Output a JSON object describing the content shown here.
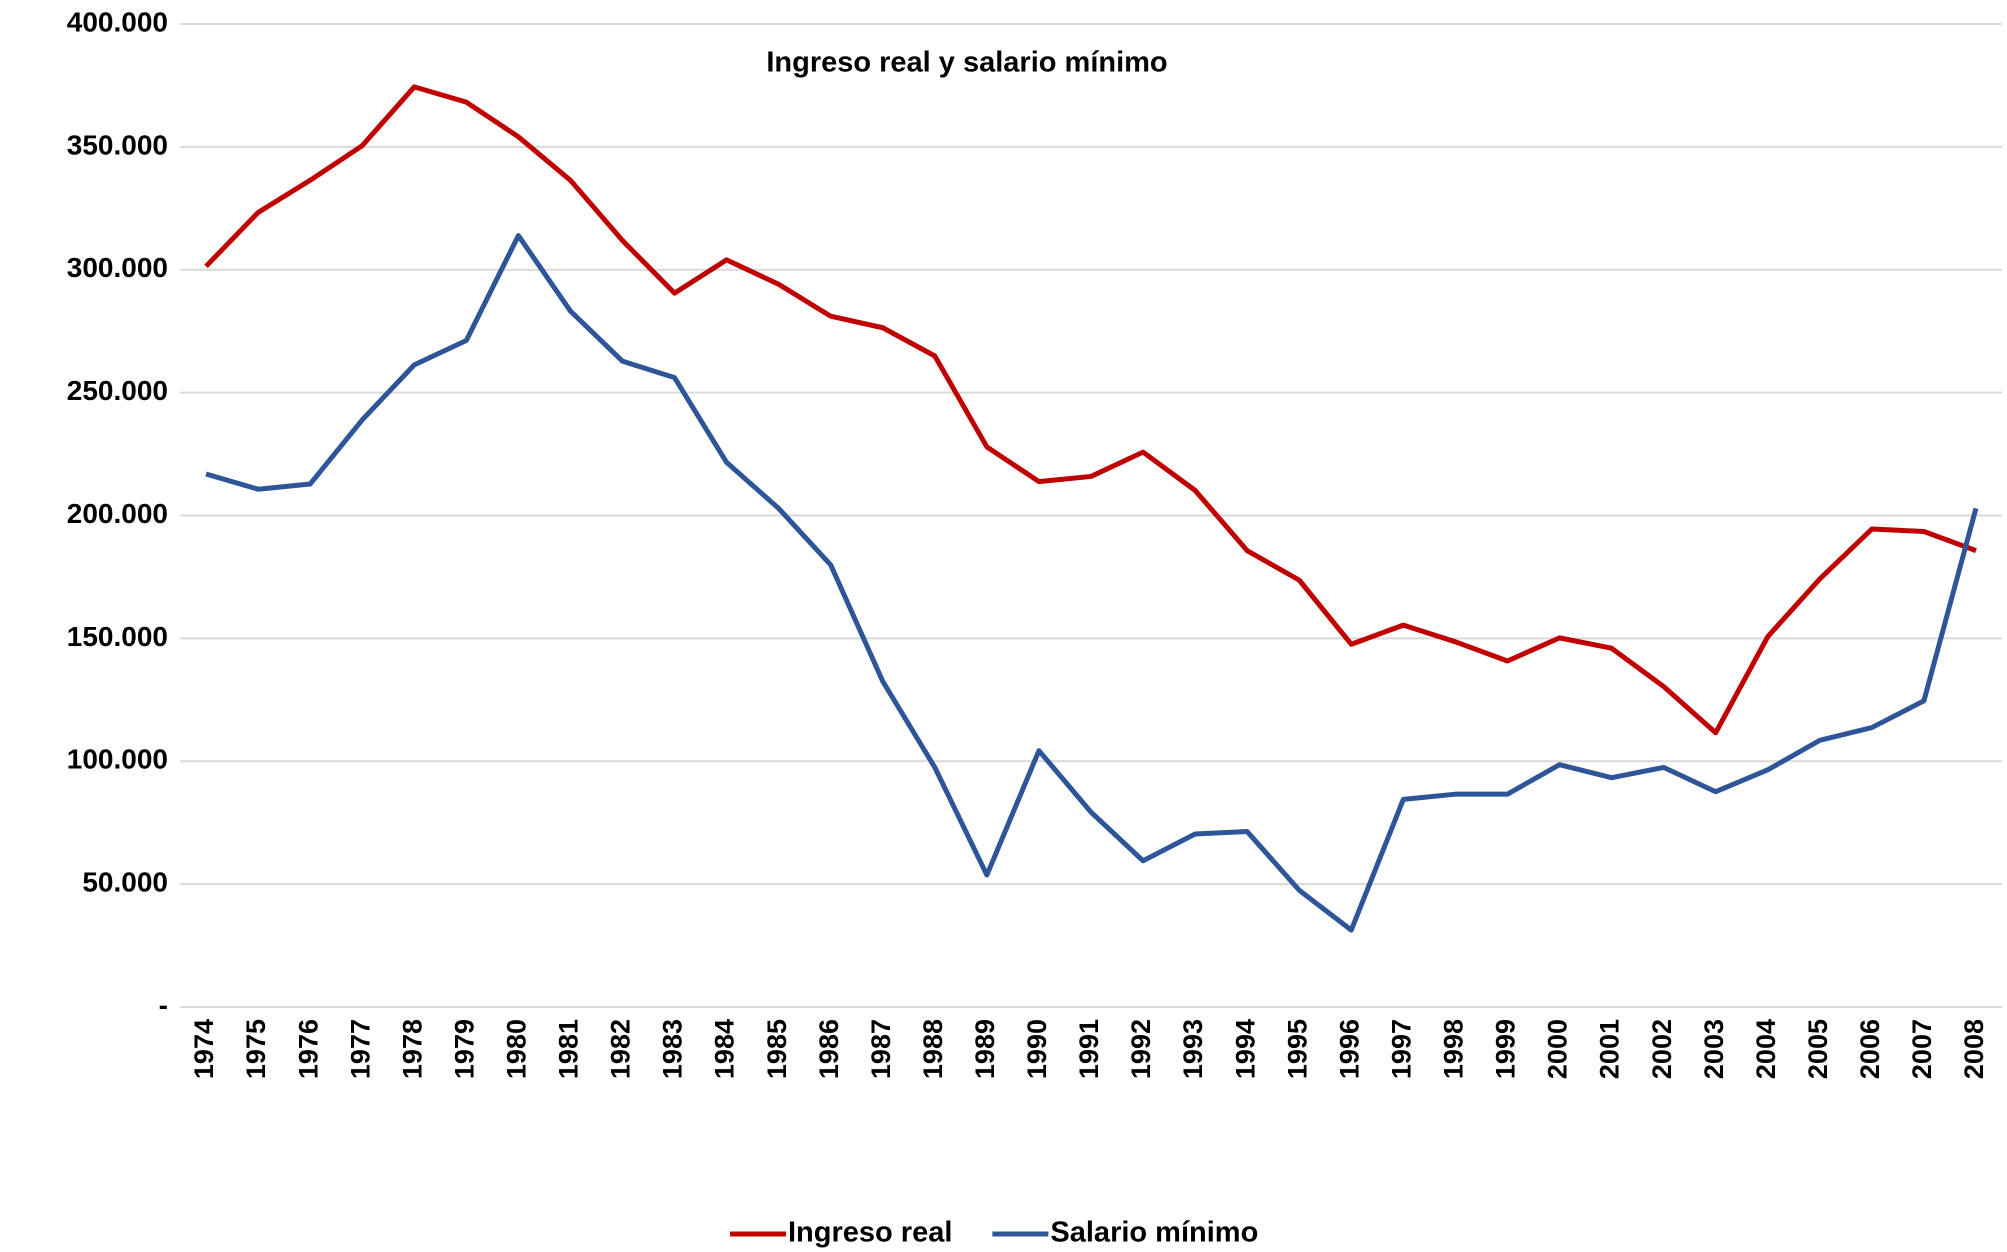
{
  "chart_data": {
    "type": "line",
    "title": "Ingreso real y salario mínimo",
    "categories": [
      "1974",
      "1975",
      "1976",
      "1977",
      "1978",
      "1979",
      "1980",
      "1981",
      "1982",
      "1983",
      "1984",
      "1985",
      "1986",
      "1987",
      "1988",
      "1989",
      "1990",
      "1991",
      "1992",
      "1993",
      "1994",
      "1995",
      "1996",
      "1997",
      "1998",
      "1999",
      "2000",
      "2001",
      "2002",
      "2003",
      "2004",
      "2005",
      "2006",
      "2007",
      "2008"
    ],
    "series": [
      {
        "name": "Ingreso real",
        "color": "#c00000",
        "values": [
          301400,
          323300,
          336400,
          350500,
          374400,
          368200,
          354100,
          336400,
          311900,
          290500,
          304000,
          294100,
          281100,
          276400,
          264900,
          227900,
          213800,
          215900,
          225800,
          210200,
          185700,
          173700,
          147600,
          155400,
          148600,
          140800,
          150200,
          146000,
          130400,
          111600,
          150700,
          174200,
          194500,
          193500,
          185700
        ]
      },
      {
        "name": "Salario mínimo",
        "color": "#2e5597",
        "values": [
          216900,
          210700,
          212800,
          238900,
          261300,
          271200,
          313900,
          283200,
          262800,
          256100,
          221600,
          202900,
          179900,
          132500,
          97500,
          53700,
          104300,
          79300,
          59500,
          70400,
          71400,
          47500,
          31300,
          84500,
          86600,
          86600,
          98600,
          93300,
          97500,
          87600,
          96500,
          108500,
          113700,
          124600,
          202900
        ]
      }
    ],
    "ylim": [
      0,
      400000
    ],
    "yticks": [
      {
        "value": 0,
        "label": "-"
      },
      {
        "value": 50000,
        "label": "50.000"
      },
      {
        "value": 100000,
        "label": "100.000"
      },
      {
        "value": 150000,
        "label": "150.000"
      },
      {
        "value": 200000,
        "label": "200.000"
      },
      {
        "value": 250000,
        "label": "250.000"
      },
      {
        "value": 300000,
        "label": "300.000"
      },
      {
        "value": 350000,
        "label": "350.000"
      },
      {
        "value": 400000,
        "label": "400.000"
      }
    ],
    "grid": true,
    "legend": "bottom"
  }
}
